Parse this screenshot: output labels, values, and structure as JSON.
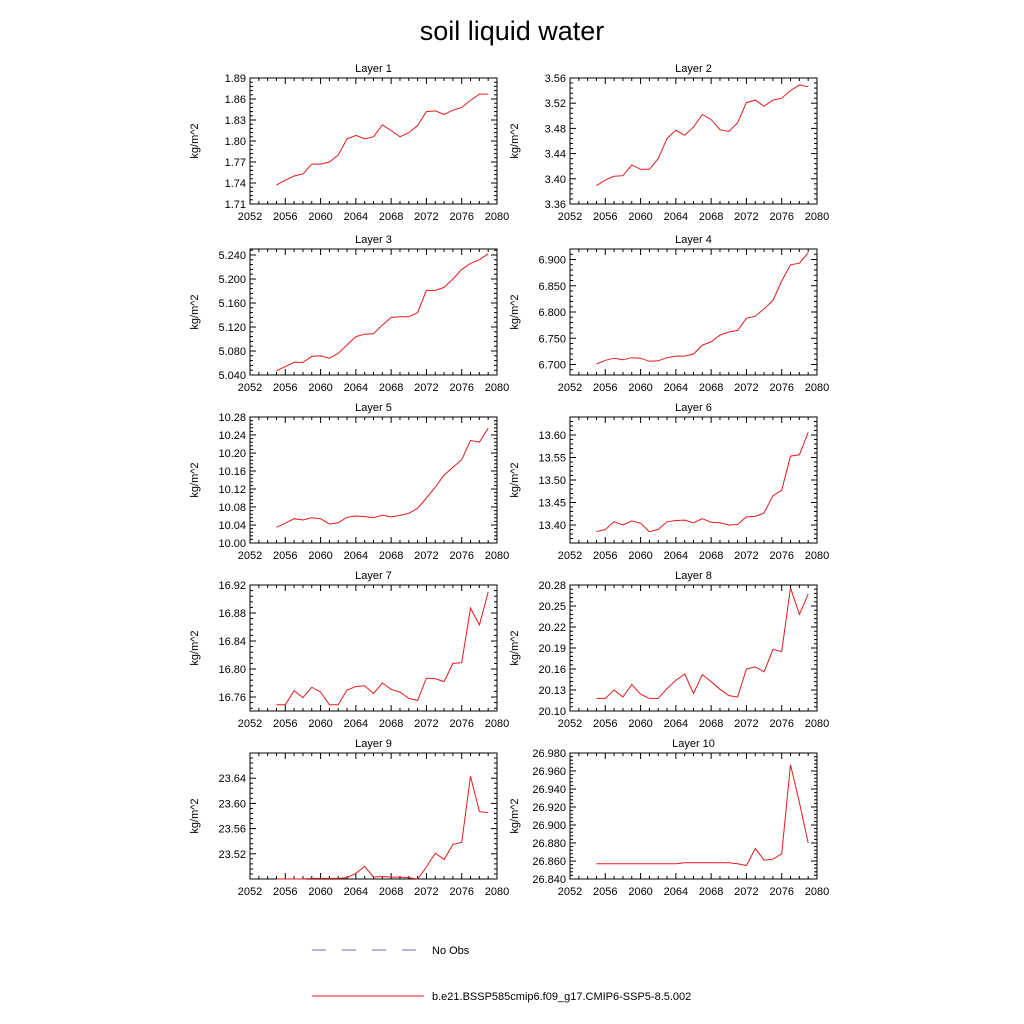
{
  "title": "soil liquid water",
  "chart_data": [
    {
      "type": "line",
      "title": "Layer 1",
      "ylabel": "kg/m^2",
      "xlim": [
        2052,
        2080
      ],
      "ylim": [
        1.71,
        1.89
      ],
      "xticks": [
        "2052",
        "2056",
        "2060",
        "2064",
        "2068",
        "2072",
        "2076",
        "2080"
      ],
      "yticks": [
        "1.71",
        "1.74",
        "1.77",
        "1.80",
        "1.83",
        "1.86",
        "1.89"
      ],
      "x": [
        2055,
        2056,
        2057,
        2058,
        2059,
        2060,
        2061,
        2062,
        2063,
        2064,
        2065,
        2066,
        2067,
        2068,
        2069,
        2070,
        2071,
        2072,
        2073,
        2074,
        2075,
        2076,
        2077,
        2078,
        2079
      ],
      "series": [
        {
          "name": "b.e21.BSSP585cmip6.f09_g17.CMIP6-SSP5-8.5.002",
          "values": [
            1.737,
            1.744,
            1.75,
            1.753,
            1.767,
            1.767,
            1.77,
            1.78,
            1.803,
            1.808,
            1.803,
            1.806,
            1.823,
            1.815,
            1.806,
            1.812,
            1.822,
            1.842,
            1.843,
            1.838,
            1.844,
            1.848,
            1.858,
            1.867,
            1.867
          ]
        }
      ]
    },
    {
      "type": "line",
      "title": "Layer 2",
      "ylabel": "kg/m^2",
      "xlim": [
        2052,
        2080
      ],
      "ylim": [
        3.36,
        3.56
      ],
      "xticks": [
        "2052",
        "2056",
        "2060",
        "2064",
        "2068",
        "2072",
        "2076",
        "2080"
      ],
      "yticks": [
        "3.36",
        "3.40",
        "3.44",
        "3.48",
        "3.52",
        "3.56"
      ],
      "x": [
        2055,
        2056,
        2057,
        2058,
        2059,
        2060,
        2061,
        2062,
        2063,
        2064,
        2065,
        2066,
        2067,
        2068,
        2069,
        2070,
        2071,
        2072,
        2073,
        2074,
        2075,
        2076,
        2077,
        2078,
        2079
      ],
      "series": [
        {
          "name": "b.e21.BSSP585cmip6.f09_g17.CMIP6-SSP5-8.5.002",
          "values": [
            3.389,
            3.398,
            3.404,
            3.405,
            3.422,
            3.415,
            3.415,
            3.432,
            3.464,
            3.477,
            3.469,
            3.482,
            3.502,
            3.494,
            3.478,
            3.475,
            3.489,
            3.521,
            3.525,
            3.515,
            3.525,
            3.528,
            3.54,
            3.549,
            3.546
          ]
        }
      ]
    },
    {
      "type": "line",
      "title": "Layer 3",
      "ylabel": "kg/m^2",
      "xlim": [
        2052,
        2080
      ],
      "ylim": [
        5.04,
        5.25
      ],
      "xticks": [
        "2052",
        "2056",
        "2060",
        "2064",
        "2068",
        "2072",
        "2076",
        "2080"
      ],
      "yticks": [
        "5.040",
        "5.080",
        "5.120",
        "5.160",
        "5.200",
        "5.240"
      ],
      "x": [
        2055,
        2056,
        2057,
        2058,
        2059,
        2060,
        2061,
        2062,
        2063,
        2064,
        2065,
        2066,
        2067,
        2068,
        2069,
        2070,
        2071,
        2072,
        2073,
        2074,
        2075,
        2076,
        2077,
        2078,
        2079
      ],
      "series": [
        {
          "name": "b.e21.BSSP585cmip6.f09_g17.CMIP6-SSP5-8.5.002",
          "values": [
            5.047,
            5.054,
            5.061,
            5.061,
            5.071,
            5.072,
            5.068,
            5.076,
            5.09,
            5.104,
            5.108,
            5.109,
            5.123,
            5.136,
            5.137,
            5.137,
            5.144,
            5.181,
            5.181,
            5.186,
            5.2,
            5.216,
            5.226,
            5.232,
            5.242
          ]
        }
      ]
    },
    {
      "type": "line",
      "title": "Layer 4",
      "ylabel": "kg/m^2",
      "xlim": [
        2052,
        2080
      ],
      "ylim": [
        6.68,
        6.92
      ],
      "xticks": [
        "2052",
        "2056",
        "2060",
        "2064",
        "2068",
        "2072",
        "2076",
        "2080"
      ],
      "yticks": [
        "6.700",
        "6.750",
        "6.800",
        "6.850",
        "6.900"
      ],
      "x": [
        2055,
        2056,
        2057,
        2058,
        2059,
        2060,
        2061,
        2062,
        2063,
        2064,
        2065,
        2066,
        2067,
        2068,
        2069,
        2070,
        2071,
        2072,
        2073,
        2074,
        2075,
        2076,
        2077,
        2078,
        2079
      ],
      "series": [
        {
          "name": "b.e21.BSSP585cmip6.f09_g17.CMIP6-SSP5-8.5.002",
          "values": [
            6.701,
            6.708,
            6.712,
            6.709,
            6.713,
            6.712,
            6.706,
            6.707,
            6.713,
            6.716,
            6.716,
            6.72,
            6.737,
            6.743,
            6.756,
            6.762,
            6.765,
            6.788,
            6.792,
            6.806,
            6.822,
            6.859,
            6.89,
            6.893,
            6.913
          ]
        }
      ]
    },
    {
      "type": "line",
      "title": "Layer 5",
      "ylabel": "kg/m^2",
      "xlim": [
        2052,
        2080
      ],
      "ylim": [
        10.0,
        10.28
      ],
      "xticks": [
        "2052",
        "2056",
        "2060",
        "2064",
        "2068",
        "2072",
        "2076",
        "2080"
      ],
      "yticks": [
        "10.00",
        "10.04",
        "10.08",
        "10.12",
        "10.16",
        "10.20",
        "10.24",
        "10.28"
      ],
      "x": [
        2055,
        2056,
        2057,
        2058,
        2059,
        2060,
        2061,
        2062,
        2063,
        2064,
        2065,
        2066,
        2067,
        2068,
        2069,
        2070,
        2071,
        2072,
        2073,
        2074,
        2075,
        2076,
        2077,
        2078,
        2079
      ],
      "series": [
        {
          "name": "b.e21.BSSP585cmip6.f09_g17.CMIP6-SSP5-8.5.002",
          "values": [
            10.035,
            10.044,
            10.054,
            10.051,
            10.056,
            10.054,
            10.042,
            10.045,
            10.057,
            10.06,
            10.059,
            10.056,
            10.062,
            10.058,
            10.061,
            10.066,
            10.077,
            10.1,
            10.124,
            10.151,
            10.168,
            10.185,
            10.228,
            10.224,
            10.255
          ]
        }
      ]
    },
    {
      "type": "line",
      "title": "Layer 6",
      "ylabel": "kg/m^2",
      "xlim": [
        2052,
        2080
      ],
      "ylim": [
        13.36,
        13.64
      ],
      "xticks": [
        "2052",
        "2056",
        "2060",
        "2064",
        "2068",
        "2072",
        "2076",
        "2080"
      ],
      "yticks": [
        "13.40",
        "13.45",
        "13.50",
        "13.55",
        "13.60"
      ],
      "x": [
        2055,
        2056,
        2057,
        2058,
        2059,
        2060,
        2061,
        2062,
        2063,
        2064,
        2065,
        2066,
        2067,
        2068,
        2069,
        2070,
        2071,
        2072,
        2073,
        2074,
        2075,
        2076,
        2077,
        2078,
        2079
      ],
      "series": [
        {
          "name": "b.e21.BSSP585cmip6.f09_g17.CMIP6-SSP5-8.5.002",
          "values": [
            13.385,
            13.39,
            13.407,
            13.4,
            13.409,
            13.404,
            13.385,
            13.39,
            13.407,
            13.41,
            13.411,
            13.405,
            13.414,
            13.406,
            13.405,
            13.4,
            13.401,
            13.418,
            13.419,
            13.427,
            13.465,
            13.477,
            13.553,
            13.556,
            13.606
          ]
        }
      ]
    },
    {
      "type": "line",
      "title": "Layer 7",
      "ylabel": "kg/m^2",
      "xlim": [
        2052,
        2080
      ],
      "ylim": [
        16.74,
        16.92
      ],
      "xticks": [
        "2052",
        "2056",
        "2060",
        "2064",
        "2068",
        "2072",
        "2076",
        "2080"
      ],
      "yticks": [
        "16.76",
        "16.80",
        "16.84",
        "16.88",
        "16.92"
      ],
      "x": [
        2055,
        2056,
        2057,
        2058,
        2059,
        2060,
        2061,
        2062,
        2063,
        2064,
        2065,
        2066,
        2067,
        2068,
        2069,
        2070,
        2071,
        2072,
        2073,
        2074,
        2075,
        2076,
        2077,
        2078,
        2079
      ],
      "series": [
        {
          "name": "b.e21.BSSP585cmip6.f09_g17.CMIP6-SSP5-8.5.002",
          "values": [
            16.749,
            16.749,
            16.769,
            16.759,
            16.774,
            16.767,
            16.749,
            16.749,
            16.77,
            16.775,
            16.776,
            16.765,
            16.78,
            16.771,
            16.767,
            16.758,
            16.755,
            16.787,
            16.786,
            16.782,
            16.808,
            16.809,
            16.887,
            16.863,
            16.91
          ]
        }
      ]
    },
    {
      "type": "line",
      "title": "Layer 8",
      "ylabel": "kg/m^2",
      "xlim": [
        2052,
        2080
      ],
      "ylim": [
        20.1,
        20.28
      ],
      "xticks": [
        "2052",
        "2056",
        "2060",
        "2064",
        "2068",
        "2072",
        "2076",
        "2080"
      ],
      "yticks": [
        "20.10",
        "20.13",
        "20.16",
        "20.19",
        "20.22",
        "20.25",
        "20.28"
      ],
      "x": [
        2055,
        2056,
        2057,
        2058,
        2059,
        2060,
        2061,
        2062,
        2063,
        2064,
        2065,
        2066,
        2067,
        2068,
        2069,
        2070,
        2071,
        2072,
        2073,
        2074,
        2075,
        2076,
        2077,
        2078,
        2079
      ],
      "series": [
        {
          "name": "b.e21.BSSP585cmip6.f09_g17.CMIP6-SSP5-8.5.002",
          "values": [
            20.118,
            20.118,
            20.13,
            20.12,
            20.138,
            20.124,
            20.118,
            20.118,
            20.132,
            20.144,
            20.153,
            20.125,
            20.152,
            20.142,
            20.131,
            20.122,
            20.12,
            20.16,
            20.163,
            20.156,
            20.188,
            20.185,
            20.276,
            20.238,
            20.267
          ]
        }
      ]
    },
    {
      "type": "line",
      "title": "Layer 9",
      "ylabel": "kg/m^2",
      "xlim": [
        2052,
        2080
      ],
      "ylim": [
        23.48,
        23.68
      ],
      "xticks": [
        "2052",
        "2056",
        "2060",
        "2064",
        "2068",
        "2072",
        "2076",
        "2080"
      ],
      "yticks": [
        "23.52",
        "23.56",
        "23.60",
        "23.64"
      ],
      "x": [
        2055,
        2056,
        2057,
        2058,
        2059,
        2060,
        2061,
        2062,
        2063,
        2064,
        2065,
        2066,
        2067,
        2068,
        2069,
        2070,
        2071,
        2072,
        2073,
        2074,
        2075,
        2076,
        2077,
        2078,
        2079
      ],
      "series": [
        {
          "name": "b.e21.BSSP585cmip6.f09_g17.CMIP6-SSP5-8.5.002",
          "values": [
            23.48,
            23.48,
            23.48,
            23.48,
            23.481,
            23.481,
            23.481,
            23.481,
            23.482,
            23.489,
            23.5,
            23.483,
            23.484,
            23.483,
            23.483,
            23.482,
            23.48,
            23.499,
            23.521,
            23.511,
            23.535,
            23.538,
            23.643,
            23.587,
            23.585
          ]
        }
      ]
    },
    {
      "type": "line",
      "title": "Layer 10",
      "ylabel": "kg/m^2",
      "xlim": [
        2052,
        2080
      ],
      "ylim": [
        26.84,
        26.98
      ],
      "xticks": [
        "2052",
        "2056",
        "2060",
        "2064",
        "2068",
        "2072",
        "2076",
        "2080"
      ],
      "yticks": [
        "26.840",
        "26.860",
        "26.880",
        "26.900",
        "26.920",
        "26.940",
        "26.960",
        "26.980"
      ],
      "x": [
        2055,
        2056,
        2057,
        2058,
        2059,
        2060,
        2061,
        2062,
        2063,
        2064,
        2065,
        2066,
        2067,
        2068,
        2069,
        2070,
        2071,
        2072,
        2073,
        2074,
        2075,
        2076,
        2077,
        2078,
        2079
      ],
      "series": [
        {
          "name": "b.e21.BSSP585cmip6.f09_g17.CMIP6-SSP5-8.5.002",
          "values": [
            26.857,
            26.857,
            26.857,
            26.857,
            26.857,
            26.857,
            26.857,
            26.857,
            26.857,
            26.857,
            26.858,
            26.858,
            26.858,
            26.858,
            26.858,
            26.858,
            26.857,
            26.855,
            26.874,
            26.861,
            26.862,
            26.868,
            26.967,
            26.925,
            26.88
          ]
        }
      ]
    }
  ],
  "legend": {
    "items": [
      {
        "label": "No Obs",
        "style": "dashed",
        "color": "#6b6bb5"
      },
      {
        "label": "b.e21.BSSP585cmip6.f09_g17.CMIP6-SSP5-8.5.002",
        "style": "solid",
        "color": "#e31a1c"
      }
    ]
  },
  "colors": {
    "series": "#e31a1c",
    "axis": "#000000",
    "obs": "#6b6bb5"
  }
}
